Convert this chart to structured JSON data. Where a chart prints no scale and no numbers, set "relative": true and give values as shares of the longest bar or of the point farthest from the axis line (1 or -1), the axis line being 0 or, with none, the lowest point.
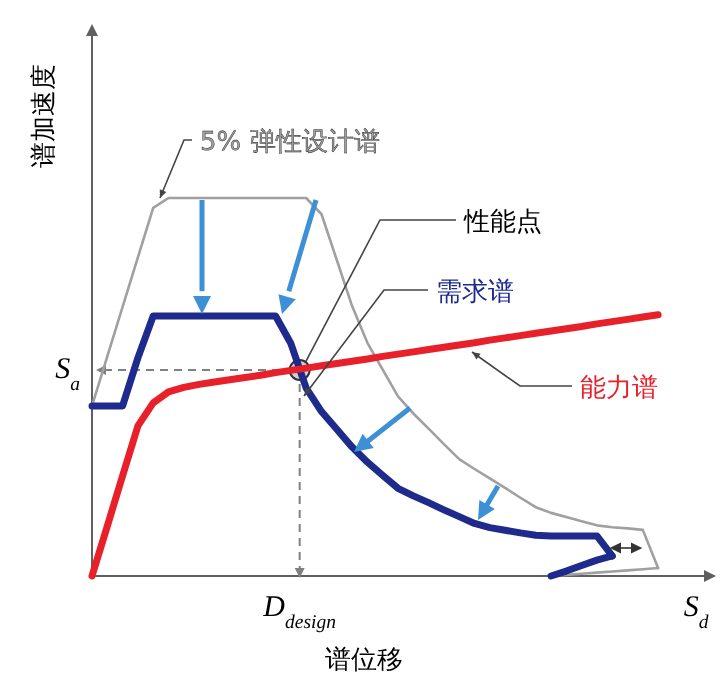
{
  "chart_data": {
    "type": "line",
    "relative": true,
    "xlabel": "谱位移",
    "ylabel": "谱加速度",
    "line_style": "solid",
    "categories": [
      null,
      null,
      null,
      null,
      null,
      null,
      null,
      null,
      null,
      null,
      null,
      null,
      null,
      null,
      null,
      null,
      null,
      null,
      null,
      null,
      null,
      null,
      null,
      null,
      null,
      null,
      null,
      null,
      null,
      null,
      null,
      null,
      null,
      null,
      null,
      null,
      null,
      null,
      null,
      null,
      null
    ],
    "series": [
      {
        "name": "5% 弹性设计谱",
        "color": "#a0a0a0",
        "values": [
          0.45,
          0.581,
          0.712,
          0.843,
          0.974,
          1,
          1,
          1,
          1,
          1,
          1,
          1,
          1,
          1,
          1,
          0.957,
          0.836,
          0.714,
          0.617,
          0.546,
          0.475,
          0.43,
          0.39,
          0.349,
          0.309,
          0.283,
          0.258,
          0.233,
          0.207,
          0.182,
          0.167,
          0.156,
          0.145,
          0.134,
          0.129,
          0.126,
          0.122,
          0.021,
          null,
          null,
          null
        ]
      },
      {
        "name": "需求谱",
        "color": "#1e2a8c",
        "values": [
          0.45,
          0.45,
          0.45,
          0.577,
          0.688,
          0.688,
          0.688,
          0.688,
          0.688,
          0.688,
          0.688,
          0.688,
          0.688,
          0.615,
          0.497,
          0.435,
          0.388,
          0.341,
          0.301,
          0.266,
          0.232,
          0.212,
          0.194,
          0.175,
          0.157,
          0.139,
          0.128,
          0.121,
          0.114,
          0.108,
          0.106,
          0.106,
          0.106,
          0.106,
          0.053,
          null,
          null,
          null,
          null,
          null,
          null
        ]
      },
      {
        "name": "能力谱",
        "color": "#e8202a",
        "values": [
          0,
          0.132,
          0.265,
          0.397,
          0.458,
          0.487,
          0.499,
          0.507,
          0.513,
          0.519,
          0.525,
          0.531,
          0.538,
          0.544,
          0.55,
          0.556,
          0.562,
          0.568,
          0.574,
          0.581,
          0.587,
          0.593,
          0.599,
          0.605,
          0.611,
          0.617,
          0.624,
          0.63,
          0.636,
          0.642,
          0.648,
          0.654,
          0.66,
          0.667,
          0.673,
          0.679,
          0.685,
          0.691,
          null,
          null,
          null
        ]
      },
      {
        "color": "#a0a0a0",
        "values": [
          null,
          null,
          null,
          null,
          null,
          null,
          null,
          null,
          null,
          null,
          null,
          null,
          null,
          null,
          null,
          null,
          null,
          null,
          null,
          null,
          null,
          null,
          null,
          null,
          null,
          null,
          null,
          null,
          null,
          null,
          0,
          0.003,
          0.006,
          0.009,
          0.012,
          0.015,
          0.018,
          0.021,
          null,
          null,
          null
        ]
      },
      {
        "color": "#1e2a8c",
        "values": [
          null,
          null,
          null,
          null,
          null,
          null,
          null,
          null,
          null,
          null,
          null,
          null,
          null,
          null,
          null,
          null,
          null,
          null,
          null,
          null,
          null,
          null,
          null,
          null,
          null,
          null,
          null,
          null,
          null,
          null,
          0,
          0.013,
          0.028,
          0.042,
          0.053,
          null,
          null,
          null,
          null,
          null,
          null
        ]
      }
    ],
    "ref_lines": [
      {
        "axis": "y",
        "value": 0.545,
        "label": "S$_{a}$",
        "color": "#808080",
        "line_style": "dashed"
      }
    ],
    "annotations": [
      "性能点",
      "D$_{design}$",
      "S$_{d}$"
    ]
  }
}
